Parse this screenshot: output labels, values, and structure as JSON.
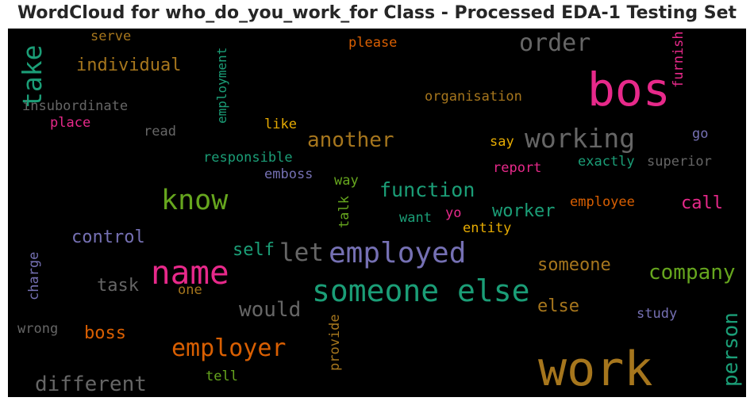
{
  "title": "WordCloud for who_do_you_work_for Class - Processed EDA-1 Testing Set",
  "colors": {
    "background": "#000000",
    "pink": "#e7298a",
    "teal": "#1b9e77",
    "olive": "#a6761d",
    "green": "#66a61e",
    "orange": "#d95f02",
    "purple": "#7570b3",
    "gray": "#666666",
    "yellow": "#e6ab02"
  },
  "words": [
    "work",
    "bos",
    "someone else",
    "name",
    "employed",
    "employer",
    "know",
    "take",
    "order",
    "working",
    "let",
    "function",
    "company",
    "person",
    "another",
    "would",
    "different",
    "individual",
    "control",
    "self",
    "someone",
    "task",
    "boss",
    "worker",
    "call",
    "else",
    "employment",
    "insubordinate",
    "organisation",
    "furnish",
    "please",
    "serve",
    "place",
    "read",
    "like",
    "responsible",
    "emboss",
    "say",
    "go",
    "exactly",
    "superior",
    "report",
    "way",
    "talk",
    "want",
    "yo",
    "entity",
    "employee",
    "charge",
    "one",
    "wrong",
    "provide",
    "study",
    "tell"
  ]
}
